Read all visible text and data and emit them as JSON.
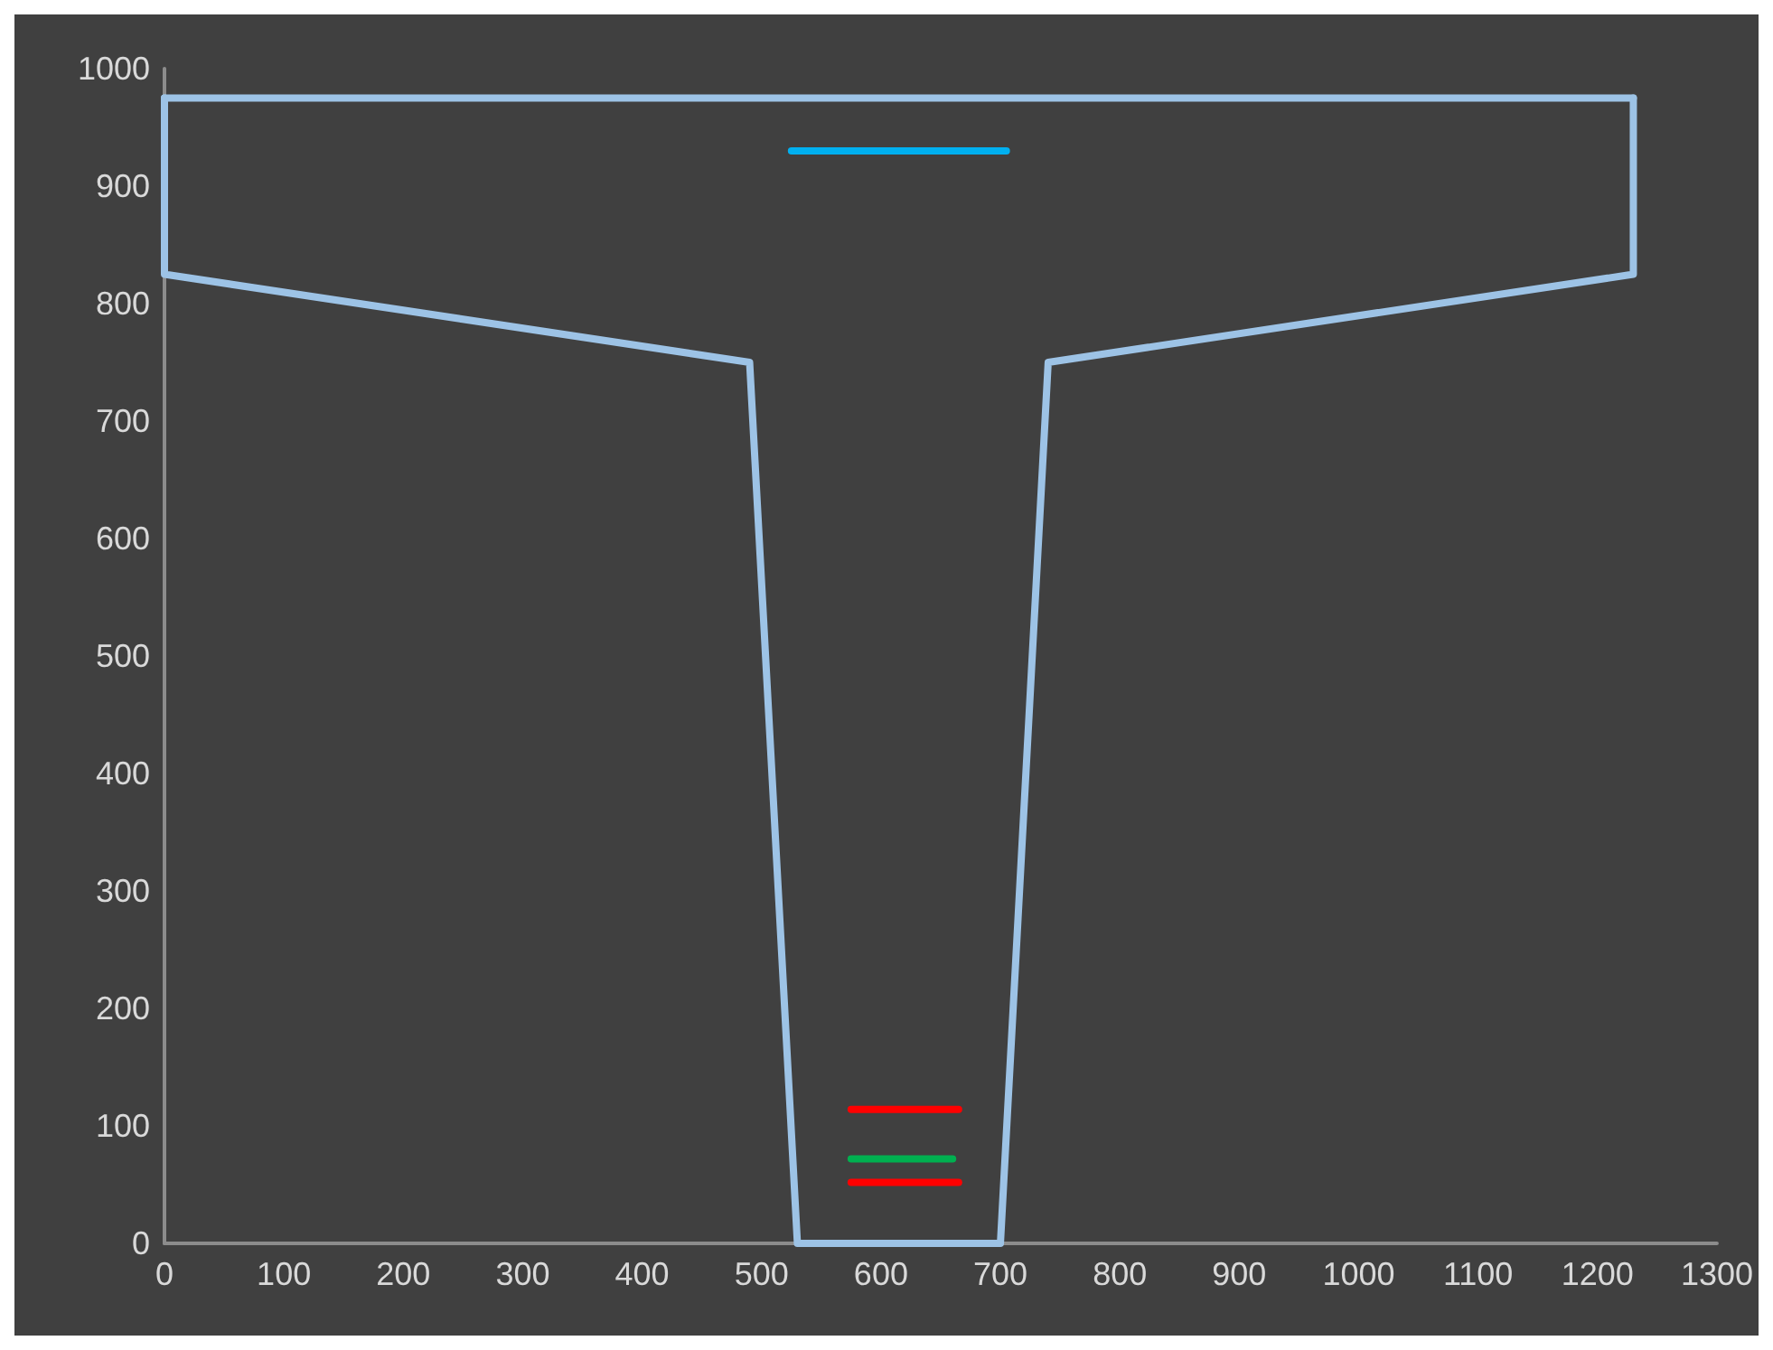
{
  "chart_data": {
    "type": "line",
    "xlim": [
      0,
      1300
    ],
    "ylim": [
      0,
      1000
    ],
    "xticks": [
      0,
      100,
      200,
      300,
      400,
      500,
      600,
      700,
      800,
      900,
      1000,
      1100,
      1200,
      1300
    ],
    "yticks": [
      0,
      100,
      200,
      300,
      400,
      500,
      600,
      700,
      800,
      900,
      1000
    ],
    "grid": false,
    "marker": "none",
    "line_style": "solid",
    "series": [
      {
        "color": "#9dc3e6",
        "x": [
          0,
          1230
        ],
        "values": [
          975,
          975
        ]
      },
      {
        "color": "#9dc3e6",
        "x": [
          0,
          0,
          490,
          530,
          700,
          740,
          1230,
          1230
        ],
        "values": [
          975,
          825,
          750,
          0,
          0,
          750,
          825,
          975
        ]
      },
      {
        "color": "#00b0f0",
        "x": [
          525,
          705
        ],
        "values": [
          930,
          930
        ]
      },
      {
        "color": "#ff0000",
        "x": [
          575,
          665
        ],
        "values": [
          114,
          114
        ]
      },
      {
        "color": "#00b050",
        "x": [
          575,
          660
        ],
        "values": [
          72,
          72
        ]
      },
      {
        "color": "#ff0000",
        "x": [
          575,
          665
        ],
        "values": [
          52,
          52
        ]
      }
    ]
  }
}
